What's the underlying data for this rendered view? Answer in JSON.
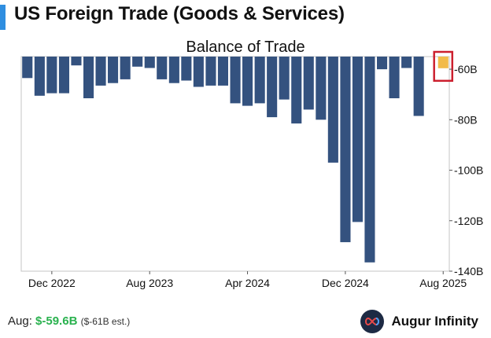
{
  "header": {
    "title": "US Foreign Trade (Goods & Services)"
  },
  "colors": {
    "accent": "#2f8ee0",
    "bar": "#34527f",
    "highlight": "#f2bb4a",
    "highlight_box": "#cc1f2e",
    "positive": "#2ab24f"
  },
  "chart_data": {
    "type": "bar",
    "title": "Balance of Trade",
    "categories": [
      "Oct 2022",
      "Nov 2022",
      "Dec 2022",
      "Jan 2023",
      "Feb 2023",
      "Mar 2023",
      "Apr 2023",
      "May 2023",
      "Jun 2023",
      "Jul 2023",
      "Aug 2023",
      "Sep 2023",
      "Oct 2023",
      "Nov 2023",
      "Dec 2023",
      "Jan 2024",
      "Feb 2024",
      "Mar 2024",
      "Apr 2024",
      "May 2024",
      "Jun 2024",
      "Jul 2024",
      "Aug 2024",
      "Sep 2024",
      "Oct 2024",
      "Nov 2024",
      "Dec 2024",
      "Jan 2025",
      "Feb 2025",
      "Mar 2025",
      "Apr 2025",
      "May 2025",
      "Jun 2025",
      "Jul 2025",
      "Aug 2025"
    ],
    "values": [
      -63.5,
      -70.5,
      -69.5,
      -69.5,
      -58.5,
      -71.5,
      -66.5,
      -65.5,
      -64,
      -59,
      -59.5,
      -64,
      -65.5,
      -64.5,
      -67,
      -66.5,
      -66.5,
      -73.5,
      -74.5,
      -73.5,
      -79,
      -72,
      -81.5,
      -76,
      -80,
      -97,
      -128.5,
      -120.5,
      -136.5,
      -60,
      -71.5,
      -59.5,
      -78.5,
      -55,
      -59.6
    ],
    "highlight_index": 34,
    "ylim": [
      -140,
      -55
    ],
    "yticks": [
      -60,
      -80,
      -100,
      -120,
      -140
    ],
    "ytick_labels": [
      "-60B",
      "-80B",
      "-100B",
      "-120B",
      "-140B"
    ],
    "xtick_labels": [
      "Dec 2022",
      "Aug 2023",
      "Apr 2024",
      "Dec 2024",
      "Aug 2025"
    ],
    "xtick_indices": [
      2,
      10,
      18,
      26,
      34
    ]
  },
  "footer": {
    "label": "Aug:",
    "value": "$-59.6B",
    "estimate": "($-61B est.)"
  },
  "brand": {
    "name": "Augur Infinity",
    "logo_icon": "infinity-icon"
  }
}
